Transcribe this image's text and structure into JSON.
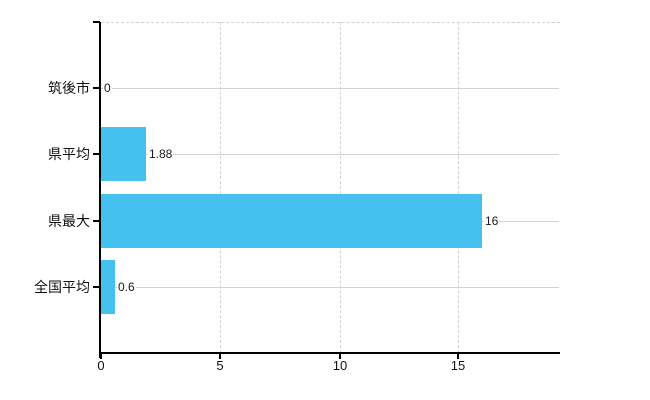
{
  "chart_data": {
    "type": "bar",
    "orientation": "horizontal",
    "categories": [
      "筑後市",
      "県平均",
      "県最大",
      "全国平均"
    ],
    "values": [
      0,
      1.88,
      16,
      0.6
    ],
    "value_labels": [
      "0",
      "1.88",
      "16",
      "0.6"
    ],
    "x_ticks": [
      "0",
      "5",
      "10",
      "15"
    ],
    "x_tick_values": [
      0,
      5,
      10,
      15
    ],
    "xlim": [
      0,
      19.3
    ],
    "grid": true,
    "legend": "none",
    "title": ""
  },
  "colors": {
    "bar": "#45C1F0",
    "h_gridline": "#ccd5ca",
    "v_gridline": "#d6ced6",
    "axis": "#000000",
    "background": "#ffffff",
    "text": "#111111"
  }
}
